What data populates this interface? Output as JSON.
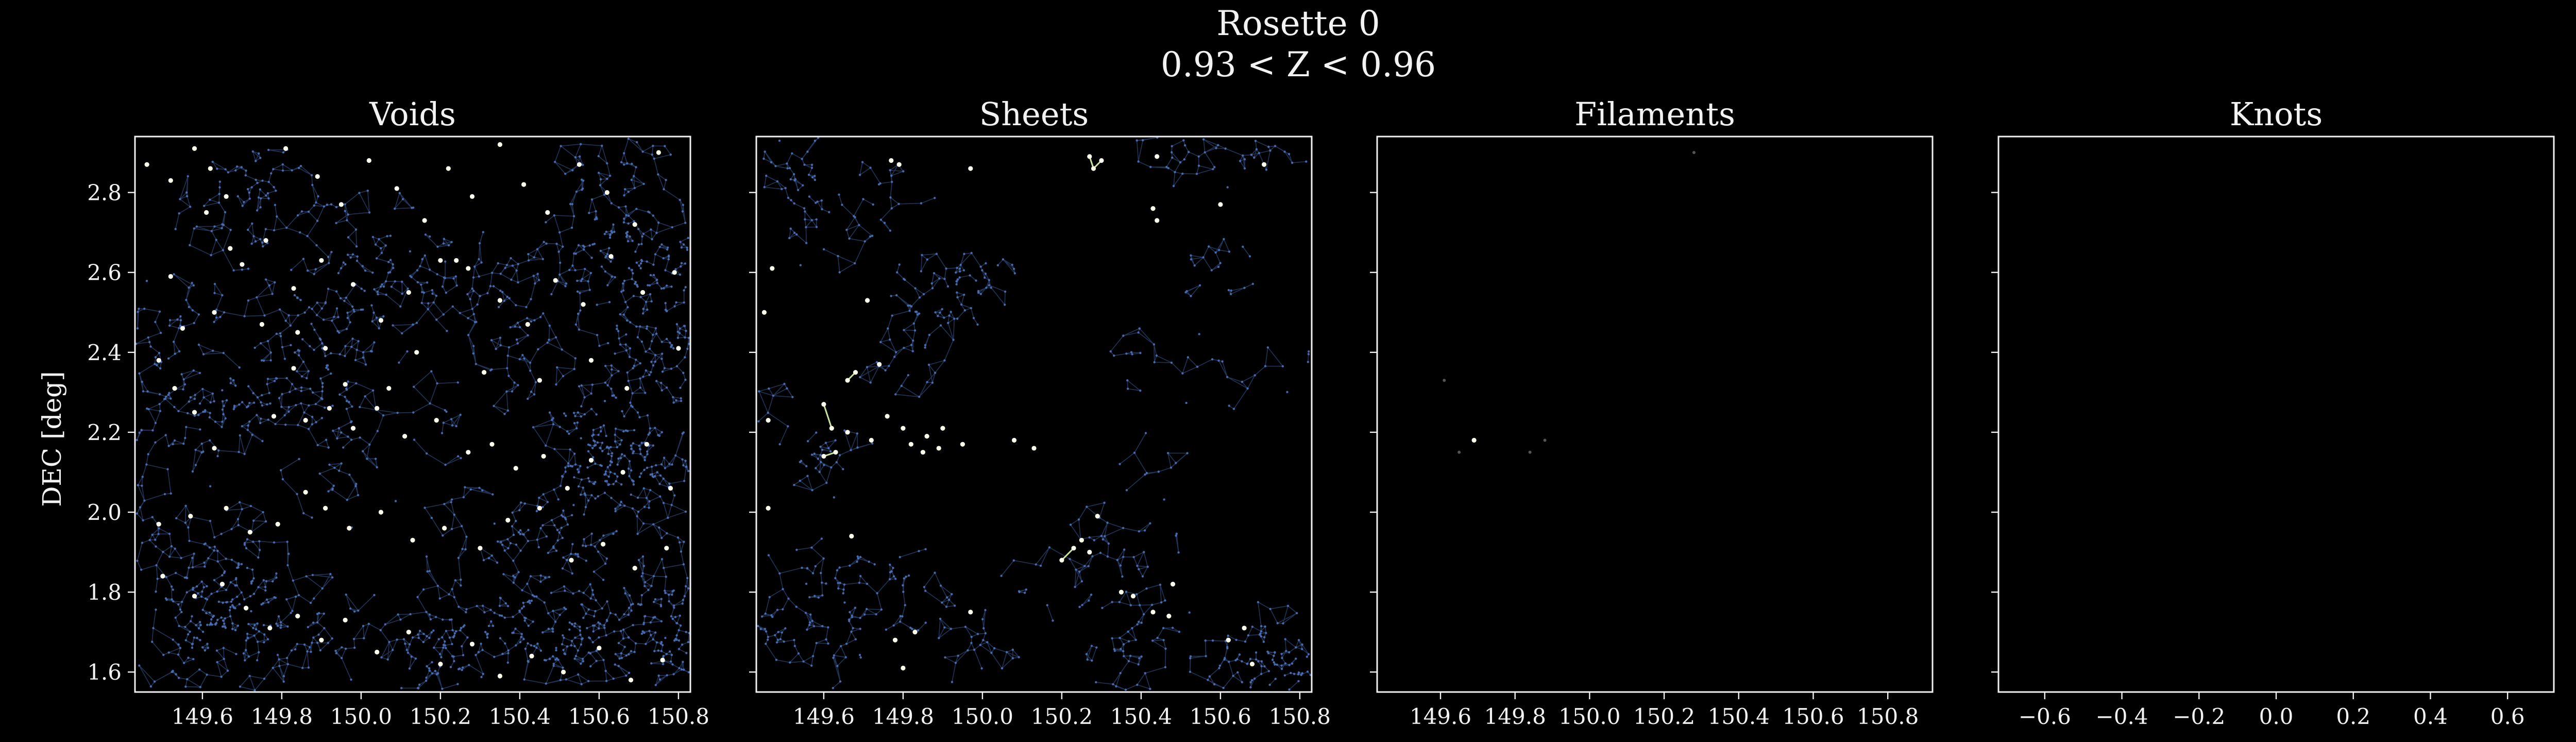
{
  "figure": {
    "suptitle_line1": "Rosette 0",
    "suptitle_line2": "0.93 < Z < 0.96",
    "ylabel": "DEC [deg]"
  },
  "colors": {
    "background": "#000000",
    "text": "#f2f2f2",
    "web_nodes": "#4f79c4",
    "web_edges": "#3a5f9e",
    "highlight_nodes": "#ffffee",
    "highlight_edges": "#c9e49c"
  },
  "chart_data": [
    {
      "type": "scatter",
      "title": "Voids",
      "xlim": [
        149.43,
        150.83
      ],
      "ylim": [
        1.55,
        2.94
      ],
      "xticks": [
        149.6,
        149.8,
        150.0,
        150.2,
        150.4,
        150.6,
        150.8
      ],
      "yticks": [
        1.6,
        1.8,
        2.0,
        2.2,
        2.4,
        2.6,
        2.8
      ],
      "show_yticklabels": true,
      "background_web_density": "dense",
      "highlighted_points": [
        [
          149.46,
          2.87
        ],
        [
          149.52,
          2.83
        ],
        [
          149.58,
          2.91
        ],
        [
          149.62,
          2.86
        ],
        [
          149.66,
          2.79
        ],
        [
          149.61,
          2.75
        ],
        [
          149.67,
          2.66
        ],
        [
          149.7,
          2.62
        ],
        [
          149.52,
          2.59
        ],
        [
          149.55,
          2.46
        ],
        [
          149.63,
          2.5
        ],
        [
          149.75,
          2.47
        ],
        [
          149.84,
          2.45
        ],
        [
          149.91,
          2.41
        ],
        [
          149.83,
          2.36
        ],
        [
          149.96,
          2.32
        ],
        [
          149.49,
          2.38
        ],
        [
          149.53,
          2.31
        ],
        [
          149.58,
          2.25
        ],
        [
          149.63,
          2.16
        ],
        [
          149.78,
          2.24
        ],
        [
          149.86,
          2.23
        ],
        [
          149.92,
          2.26
        ],
        [
          149.98,
          2.21
        ],
        [
          150.04,
          2.26
        ],
        [
          150.11,
          2.19
        ],
        [
          150.19,
          2.23
        ],
        [
          150.27,
          2.15
        ],
        [
          150.33,
          2.17
        ],
        [
          150.39,
          2.11
        ],
        [
          150.46,
          2.14
        ],
        [
          150.52,
          2.06
        ],
        [
          150.58,
          2.13
        ],
        [
          150.66,
          2.1
        ],
        [
          150.72,
          2.17
        ],
        [
          150.78,
          2.06
        ],
        [
          149.49,
          1.97
        ],
        [
          149.57,
          1.99
        ],
        [
          149.66,
          2.01
        ],
        [
          149.72,
          1.95
        ],
        [
          149.79,
          1.97
        ],
        [
          149.86,
          2.05
        ],
        [
          149.91,
          2.01
        ],
        [
          149.97,
          1.96
        ],
        [
          150.05,
          2.0
        ],
        [
          150.13,
          1.93
        ],
        [
          150.21,
          1.96
        ],
        [
          150.3,
          1.91
        ],
        [
          150.37,
          1.98
        ],
        [
          150.45,
          2.01
        ],
        [
          150.53,
          1.88
        ],
        [
          150.61,
          1.92
        ],
        [
          150.69,
          1.86
        ],
        [
          150.77,
          1.91
        ],
        [
          149.5,
          1.84
        ],
        [
          149.58,
          1.79
        ],
        [
          149.65,
          1.82
        ],
        [
          149.71,
          1.76
        ],
        [
          149.77,
          1.71
        ],
        [
          149.84,
          1.74
        ],
        [
          149.9,
          1.68
        ],
        [
          149.96,
          1.73
        ],
        [
          150.04,
          1.65
        ],
        [
          150.12,
          1.7
        ],
        [
          150.2,
          1.62
        ],
        [
          150.28,
          1.67
        ],
        [
          150.35,
          1.59
        ],
        [
          150.43,
          1.64
        ],
        [
          150.51,
          1.6
        ],
        [
          150.6,
          1.66
        ],
        [
          150.68,
          1.58
        ],
        [
          150.76,
          1.63
        ],
        [
          149.81,
          2.91
        ],
        [
          149.89,
          2.84
        ],
        [
          149.95,
          2.77
        ],
        [
          150.02,
          2.88
        ],
        [
          150.09,
          2.81
        ],
        [
          150.16,
          2.73
        ],
        [
          150.22,
          2.86
        ],
        [
          150.28,
          2.79
        ],
        [
          150.35,
          2.92
        ],
        [
          150.41,
          2.82
        ],
        [
          150.47,
          2.75
        ],
        [
          150.55,
          2.87
        ],
        [
          150.62,
          2.8
        ],
        [
          150.69,
          2.72
        ],
        [
          150.75,
          2.9
        ],
        [
          150.79,
          2.6
        ],
        [
          150.71,
          2.55
        ],
        [
          150.63,
          2.64
        ],
        [
          150.56,
          2.52
        ],
        [
          150.49,
          2.58
        ],
        [
          150.42,
          2.47
        ],
        [
          150.35,
          2.53
        ],
        [
          150.27,
          2.61
        ],
        [
          150.2,
          2.63
        ],
        [
          150.12,
          2.55
        ],
        [
          150.05,
          2.48
        ],
        [
          149.98,
          2.57
        ],
        [
          149.9,
          2.63
        ],
        [
          149.83,
          2.56
        ],
        [
          149.76,
          2.68
        ],
        [
          150.24,
          2.63
        ],
        [
          150.31,
          2.35
        ],
        [
          150.45,
          2.33
        ],
        [
          150.58,
          2.38
        ],
        [
          150.67,
          2.31
        ],
        [
          150.8,
          2.41
        ],
        [
          150.14,
          2.4
        ],
        [
          150.07,
          2.31
        ]
      ],
      "highlighted_edges": []
    },
    {
      "type": "scatter",
      "title": "Sheets",
      "xlim": [
        149.43,
        150.83
      ],
      "ylim": [
        1.55,
        2.94
      ],
      "xticks": [
        149.6,
        149.8,
        150.0,
        150.2,
        150.4,
        150.6,
        150.8
      ],
      "yticks": [
        1.6,
        1.8,
        2.0,
        2.2,
        2.4,
        2.6,
        2.8
      ],
      "show_yticklabels": false,
      "background_web_density": "medium",
      "highlighted_points": [
        [
          149.45,
          2.5
        ],
        [
          149.47,
          2.61
        ],
        [
          149.46,
          2.23
        ],
        [
          149.46,
          2.01
        ],
        [
          149.6,
          2.27
        ],
        [
          149.62,
          2.21
        ],
        [
          149.6,
          2.14
        ],
        [
          149.63,
          2.15
        ],
        [
          149.66,
          2.33
        ],
        [
          149.68,
          2.35
        ],
        [
          149.66,
          2.2
        ],
        [
          149.72,
          2.18
        ],
        [
          149.74,
          2.37
        ],
        [
          149.76,
          2.24
        ],
        [
          149.8,
          2.21
        ],
        [
          149.82,
          2.17
        ],
        [
          149.85,
          2.15
        ],
        [
          149.86,
          2.19
        ],
        [
          149.89,
          2.16
        ],
        [
          149.9,
          2.21
        ],
        [
          149.95,
          2.17
        ],
        [
          150.08,
          2.18
        ],
        [
          150.13,
          2.16
        ],
        [
          149.71,
          2.53
        ],
        [
          149.67,
          1.94
        ],
        [
          149.78,
          1.68
        ],
        [
          149.83,
          1.7
        ],
        [
          149.8,
          1.61
        ],
        [
          149.97,
          1.75
        ],
        [
          150.2,
          1.88
        ],
        [
          150.23,
          1.91
        ],
        [
          150.25,
          1.93
        ],
        [
          150.29,
          1.99
        ],
        [
          150.27,
          1.9
        ],
        [
          150.35,
          1.8
        ],
        [
          150.38,
          1.79
        ],
        [
          150.43,
          1.75
        ],
        [
          150.47,
          1.74
        ],
        [
          150.48,
          1.82
        ],
        [
          150.62,
          1.68
        ],
        [
          150.68,
          1.62
        ],
        [
          150.66,
          1.71
        ],
        [
          150.27,
          2.89
        ],
        [
          150.3,
          2.88
        ],
        [
          150.28,
          2.86
        ],
        [
          150.44,
          2.89
        ],
        [
          150.71,
          2.87
        ],
        [
          150.6,
          2.77
        ],
        [
          150.43,
          2.76
        ],
        [
          150.44,
          2.73
        ],
        [
          149.77,
          2.88
        ],
        [
          149.79,
          2.87
        ],
        [
          149.97,
          2.86
        ]
      ],
      "highlighted_edges": [
        [
          [
            149.6,
            2.27
          ],
          [
            149.62,
            2.21
          ]
        ],
        [
          [
            149.66,
            2.33
          ],
          [
            149.68,
            2.35
          ]
        ],
        [
          [
            149.6,
            2.14
          ],
          [
            149.63,
            2.15
          ]
        ],
        [
          [
            150.27,
            2.89
          ],
          [
            150.28,
            2.86
          ]
        ],
        [
          [
            150.28,
            2.86
          ],
          [
            150.3,
            2.88
          ]
        ],
        [
          [
            150.2,
            1.88
          ],
          [
            150.23,
            1.91
          ]
        ]
      ]
    },
    {
      "type": "scatter",
      "title": "Filaments",
      "xlim": [
        149.43,
        150.92
      ],
      "ylim": [
        1.55,
        2.94
      ],
      "xticks": [
        149.6,
        149.8,
        150.0,
        150.2,
        150.4,
        150.6,
        150.8
      ],
      "yticks": [
        1.6,
        1.8,
        2.0,
        2.2,
        2.4,
        2.6,
        2.8
      ],
      "show_yticklabels": false,
      "background_web_density": "none",
      "highlighted_points": [
        [
          149.69,
          2.18
        ]
      ],
      "faint_points": [
        [
          149.61,
          2.33
        ],
        [
          149.65,
          2.15
        ],
        [
          149.84,
          2.15
        ],
        [
          149.88,
          2.18
        ],
        [
          150.28,
          2.9
        ]
      ],
      "highlighted_edges": []
    },
    {
      "type": "scatter",
      "title": "Knots",
      "xlim": [
        -0.72,
        0.72
      ],
      "ylim": [
        1.55,
        2.94
      ],
      "xticks": [
        -0.6,
        -0.4,
        -0.2,
        0.0,
        0.2,
        0.4,
        0.6
      ],
      "yticks": [
        1.6,
        1.8,
        2.0,
        2.2,
        2.4,
        2.6,
        2.8
      ],
      "show_yticklabels": false,
      "background_web_density": "none",
      "highlighted_points": [],
      "highlighted_edges": []
    }
  ]
}
